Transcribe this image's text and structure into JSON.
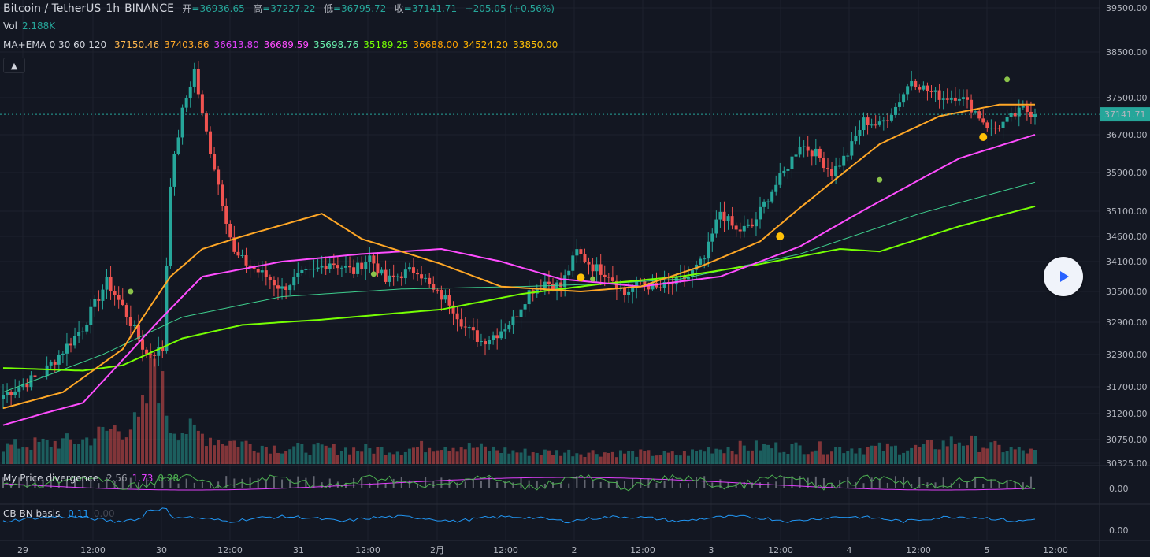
{
  "header": {
    "symbol": "Bitcoin / TetherUS",
    "interval": "1h",
    "exchange": "BINANCE",
    "open_label": "开",
    "open": "=36936.65",
    "high_label": "高",
    "high": "=37227.22",
    "low_label": "低",
    "low": "=36795.72",
    "close_label": "收",
    "close": "=37141.71",
    "change": "+205.05 (+0.56%)"
  },
  "vol_legend": {
    "label": "Vol",
    "value": "2.188K"
  },
  "ma_legend": {
    "label": "MA+EMA 0 30 60 120",
    "values": [
      {
        "v": "37150.46",
        "color": "#ffb74d"
      },
      {
        "v": "37403.66",
        "color": "#ffa726"
      },
      {
        "v": "36613.80",
        "color": "#e040fb"
      },
      {
        "v": "36689.59",
        "color": "#ff4dff"
      },
      {
        "v": "35698.76",
        "color": "#69f0ae"
      },
      {
        "v": "35189.25",
        "color": "#76ff03"
      },
      {
        "v": "36688.00",
        "color": "#ffa000"
      },
      {
        "v": "34524.20",
        "color": "#ffb300"
      },
      {
        "v": "33850.00",
        "color": "#ffc107"
      }
    ]
  },
  "pd_legend": {
    "label": "My Price divergence",
    "values": [
      {
        "v": "2.56",
        "color": "#9598a1"
      },
      {
        "v": "1.73",
        "color": "#e040fb"
      },
      {
        "v": "0.28",
        "color": "#4caf50"
      }
    ]
  },
  "cb_legend": {
    "label": "CB-BN basis",
    "values": [
      {
        "v": "0.11",
        "color": "#2196f3"
      },
      {
        "v": "0.00",
        "color": "#434651"
      }
    ]
  },
  "collapse_icon": "▲",
  "current_price_tag": "37141.71",
  "colors": {
    "up": "#26a69a",
    "down": "#ef5350",
    "bg": "#131722"
  },
  "chart_data": {
    "type": "candlestick",
    "y_axis": {
      "ticks": [
        39500,
        38500,
        37500,
        36700,
        35900,
        35100,
        34600,
        34100,
        33500,
        32900,
        32300,
        31700,
        31200,
        30750,
        30325
      ],
      "labels": [
        "39500.00",
        "38500.00",
        "37500.00",
        "36700.00",
        "35900.00",
        "35100.00",
        "34600.00",
        "34100.00",
        "33500.00",
        "32900.00",
        "32300.00",
        "31700.00",
        "31200.00",
        "30750.00",
        "30325.00"
      ]
    },
    "x_axis": {
      "labels": [
        "29",
        "12:00",
        "30",
        "12:00",
        "31",
        "12:00",
        "2月",
        "12:00",
        "2",
        "12:00",
        "3",
        "12:00",
        "4",
        "12:00",
        "5",
        "12:00"
      ]
    },
    "close_anchors": [
      [
        0,
        31550
      ],
      [
        10,
        31950
      ],
      [
        20,
        32800
      ],
      [
        26,
        33700
      ],
      [
        30,
        33200
      ],
      [
        36,
        32300
      ],
      [
        40,
        32400
      ],
      [
        42,
        35700
      ],
      [
        45,
        37200
      ],
      [
        48,
        38100
      ],
      [
        50,
        37100
      ],
      [
        55,
        35300
      ],
      [
        58,
        34250
      ],
      [
        62,
        34000
      ],
      [
        66,
        33800
      ],
      [
        70,
        33550
      ],
      [
        74,
        33800
      ],
      [
        78,
        33900
      ],
      [
        82,
        34100
      ],
      [
        88,
        33900
      ],
      [
        92,
        34200
      ],
      [
        96,
        33700
      ],
      [
        100,
        33850
      ],
      [
        104,
        33950
      ],
      [
        108,
        33500
      ],
      [
        112,
        33300
      ],
      [
        116,
        32800
      ],
      [
        120,
        32550
      ],
      [
        124,
        32700
      ],
      [
        128,
        32950
      ],
      [
        132,
        33500
      ],
      [
        136,
        33700
      ],
      [
        140,
        33600
      ],
      [
        144,
        34300
      ],
      [
        148,
        34000
      ],
      [
        152,
        33850
      ],
      [
        156,
        33450
      ],
      [
        160,
        33700
      ],
      [
        164,
        33550
      ],
      [
        168,
        33650
      ],
      [
        172,
        33800
      ],
      [
        176,
        34150
      ],
      [
        180,
        35100
      ],
      [
        184,
        34700
      ],
      [
        188,
        34800
      ],
      [
        192,
        35400
      ],
      [
        196,
        35900
      ],
      [
        200,
        36500
      ],
      [
        204,
        36300
      ],
      [
        208,
        35900
      ],
      [
        212,
        36300
      ],
      [
        216,
        37000
      ],
      [
        220,
        36900
      ],
      [
        224,
        37300
      ],
      [
        228,
        37900
      ],
      [
        232,
        37650
      ],
      [
        236,
        37500
      ],
      [
        240,
        37550
      ],
      [
        244,
        37200
      ],
      [
        248,
        36800
      ],
      [
        252,
        37000
      ],
      [
        256,
        37250
      ],
      [
        259,
        37141
      ]
    ],
    "indicators": {
      "ma_short_anchors": [
        [
          0,
          31300
        ],
        [
          15,
          31600
        ],
        [
          30,
          32400
        ],
        [
          42,
          33800
        ],
        [
          50,
          34350
        ],
        [
          60,
          34600
        ],
        [
          80,
          35050
        ],
        [
          90,
          34550
        ],
        [
          110,
          34050
        ],
        [
          125,
          33600
        ],
        [
          145,
          33500
        ],
        [
          160,
          33600
        ],
        [
          175,
          34000
        ],
        [
          190,
          34500
        ],
        [
          205,
          35500
        ],
        [
          220,
          36500
        ],
        [
          235,
          37100
        ],
        [
          250,
          37350
        ],
        [
          259,
          37350
        ]
      ],
      "ma_mid_anchors": [
        [
          0,
          31000
        ],
        [
          20,
          31400
        ],
        [
          35,
          32600
        ],
        [
          50,
          33800
        ],
        [
          70,
          34100
        ],
        [
          90,
          34250
        ],
        [
          110,
          34350
        ],
        [
          125,
          34100
        ],
        [
          140,
          33750
        ],
        [
          160,
          33600
        ],
        [
          180,
          33800
        ],
        [
          200,
          34400
        ],
        [
          220,
          35300
        ],
        [
          240,
          36200
        ],
        [
          259,
          36700
        ]
      ],
      "ma_long_anchors": [
        [
          0,
          32050
        ],
        [
          20,
          32000
        ],
        [
          30,
          32100
        ],
        [
          45,
          32600
        ],
        [
          60,
          32850
        ],
        [
          80,
          32950
        ],
        [
          110,
          33150
        ],
        [
          130,
          33450
        ],
        [
          150,
          33650
        ],
        [
          170,
          33800
        ],
        [
          190,
          34050
        ],
        [
          210,
          34350
        ],
        [
          220,
          34300
        ],
        [
          240,
          34800
        ],
        [
          259,
          35200
        ]
      ],
      "ma_long2_anchors": [
        [
          0,
          31600
        ],
        [
          25,
          32300
        ],
        [
          45,
          33000
        ],
        [
          70,
          33400
        ],
        [
          100,
          33550
        ],
        [
          130,
          33600
        ],
        [
          150,
          33650
        ],
        [
          170,
          33750
        ],
        [
          200,
          34250
        ],
        [
          230,
          35050
        ],
        [
          259,
          35700
        ]
      ]
    },
    "volume_anchors": [
      [
        0,
        22
      ],
      [
        20,
        30
      ],
      [
        28,
        45
      ],
      [
        34,
        50
      ],
      [
        36,
        80
      ],
      [
        38,
        140
      ],
      [
        40,
        90
      ],
      [
        42,
        50
      ],
      [
        48,
        40
      ],
      [
        55,
        30
      ],
      [
        70,
        20
      ],
      [
        100,
        18
      ],
      [
        110,
        25
      ],
      [
        130,
        15
      ],
      [
        150,
        15
      ],
      [
        170,
        12
      ],
      [
        178,
        20
      ],
      [
        190,
        22
      ],
      [
        210,
        20
      ],
      [
        230,
        20
      ],
      [
        240,
        30
      ],
      [
        250,
        20
      ],
      [
        259,
        15
      ]
    ],
    "sub1": {
      "zero_label": "0.00"
    },
    "sub2": {
      "zero_label": "0.00"
    }
  }
}
